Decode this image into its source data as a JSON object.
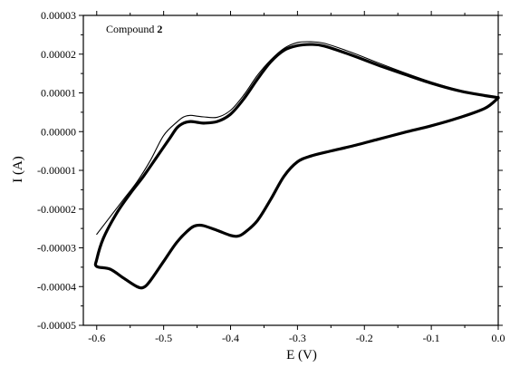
{
  "chart_data": {
    "type": "line",
    "title": "",
    "xlabel": "E (V)",
    "ylabel": "I (A)",
    "xlim": [
      -0.62,
      0.0
    ],
    "ylim": [
      -5e-05,
      3e-05
    ],
    "x_ticks": [
      -0.6,
      -0.5,
      -0.4,
      -0.3,
      -0.2,
      -0.1,
      0.0
    ],
    "x_tick_labels": [
      "-0.6",
      "-0.5",
      "-0.4",
      "-0.3",
      "-0.2",
      "-0.1",
      "0.0"
    ],
    "y_ticks": [
      -5e-05,
      -4e-05,
      -3e-05,
      -2e-05,
      -1e-05,
      0.0,
      1e-05,
      2e-05,
      3e-05
    ],
    "y_tick_labels": [
      "-0.00005",
      "-0.00004",
      "-0.00003",
      "-0.00002",
      "-0.00001",
      "0.00000",
      "0.00001",
      "0.00002",
      "0.00003"
    ],
    "grid": false,
    "annotation": {
      "text": "Compound ",
      "bold": "2"
    },
    "series": [
      {
        "style": "thin",
        "x": [
          -0.6,
          -0.58,
          -0.56,
          -0.54,
          -0.52,
          -0.5,
          -0.48,
          -0.47,
          -0.46,
          -0.45,
          -0.44,
          -0.42,
          -0.4,
          -0.38,
          -0.36,
          -0.34,
          -0.32,
          -0.3,
          -0.28,
          -0.26,
          -0.22,
          -0.18,
          -0.14,
          -0.1,
          -0.06,
          -0.02,
          0.0
        ],
        "y": [
          -2.65e-05,
          -2.2e-05,
          -1.75e-05,
          -1.3e-05,
          -7.5e-06,
          -1e-06,
          2.5e-06,
          3.8e-06,
          4.2e-06,
          4e-06,
          3.8e-06,
          3.7e-06,
          5.5e-06,
          9.5e-06,
          1.45e-05,
          1.85e-05,
          2.15e-05,
          2.3e-05,
          2.32e-05,
          2.28e-05,
          2.05e-05,
          1.78e-05,
          1.52e-05,
          1.28e-05,
          1.08e-05,
          9.4e-06,
          8.9e-06
        ]
      },
      {
        "style": "thick",
        "x": [
          0.0,
          -0.02,
          -0.06,
          -0.1,
          -0.14,
          -0.18,
          -0.22,
          -0.25,
          -0.28,
          -0.3,
          -0.32,
          -0.34,
          -0.36,
          -0.38,
          -0.39,
          -0.4,
          -0.42,
          -0.44,
          -0.45,
          -0.46,
          -0.48,
          -0.5,
          -0.52,
          -0.53,
          -0.54,
          -0.56,
          -0.58,
          -0.6,
          -0.6,
          -0.59,
          -0.57,
          -0.55,
          -0.53,
          -0.51,
          -0.49,
          -0.48,
          -0.47,
          -0.46,
          -0.45,
          -0.44,
          -0.42,
          -0.4,
          -0.38,
          -0.36,
          -0.34,
          -0.32,
          -0.3,
          -0.28,
          -0.26,
          -0.22,
          -0.18,
          -0.14,
          -0.1,
          -0.06,
          -0.02,
          0.0
        ],
        "y": [
          8.7e-06,
          6e-06,
          3.5e-06,
          1.5e-06,
          -2e-07,
          -2e-06,
          -3.8e-06,
          -5e-06,
          -6.3e-06,
          -7.8e-06,
          -1.15e-05,
          -1.75e-05,
          -2.3e-05,
          -2.62e-05,
          -2.7e-05,
          -2.68e-05,
          -2.55e-05,
          -2.43e-05,
          -2.42e-05,
          -2.5e-05,
          -2.85e-05,
          -3.35e-05,
          -3.85e-05,
          -4.02e-05,
          -4e-05,
          -3.78e-05,
          -3.55e-05,
          -3.48e-05,
          -3.3e-05,
          -2.75e-05,
          -2.1e-05,
          -1.6e-05,
          -1.15e-05,
          -6.5e-06,
          -1.5e-06,
          1e-06,
          2.2e-06,
          2.6e-06,
          2.4e-06,
          2.2e-06,
          2.6e-06,
          4.5e-06,
          8.5e-06,
          1.35e-05,
          1.8e-05,
          2.1e-05,
          2.22e-05,
          2.25e-05,
          2.21e-05,
          1.98e-05,
          1.72e-05,
          1.48e-05,
          1.25e-05,
          1.06e-05,
          9.3e-06,
          8.8e-06
        ]
      }
    ]
  }
}
